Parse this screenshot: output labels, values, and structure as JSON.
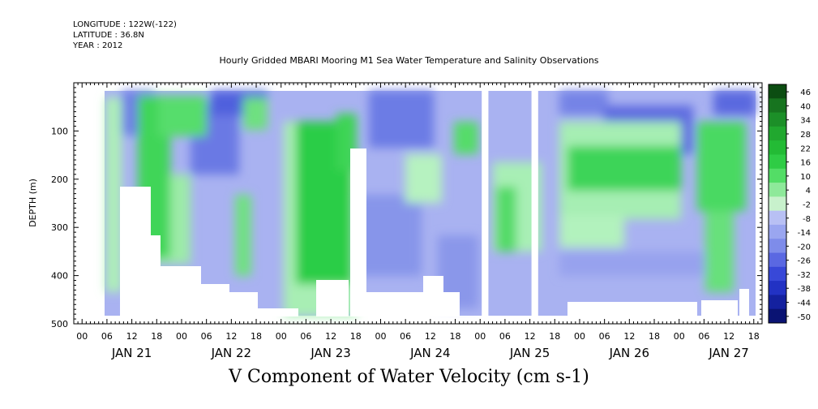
{
  "header": {
    "longitude": "LONGITUDE : 122W(-122)",
    "latitude": "LATITUDE : 36.8N",
    "year": "YEAR : 2012"
  },
  "chart_data": {
    "type": "heatmap",
    "title": "Hourly Gridded MBARI Mooring M1 Sea Water Temperature and Salinity Observations",
    "bottom_title": "V Component of Water Velocity (cm s-1)",
    "ylabel": "DEPTH (m)",
    "ylim": [
      0,
      500
    ],
    "y_inverted": true,
    "y_ticks": [
      100,
      200,
      300,
      400,
      500
    ],
    "x_axis": "time (hours)",
    "x_start": "JAN 20 22:00",
    "x_end": "JAN 27 20:00",
    "x_hour_tick_labels": [
      "00",
      "06",
      "12",
      "18",
      "00",
      "06",
      "12",
      "18",
      "00",
      "06",
      "12",
      "18",
      "00",
      "06",
      "12",
      "18",
      "00",
      "06",
      "12",
      "18",
      "00",
      "06",
      "12",
      "18",
      "00",
      "06",
      "12",
      "18"
    ],
    "day_labels": [
      "JAN 21",
      "JAN 22",
      "JAN 23",
      "JAN 24",
      "JAN 25",
      "JAN 26",
      "JAN 27"
    ],
    "colorbar": {
      "levels": [
        "46",
        "40",
        "34",
        "28",
        "22",
        "16",
        "10",
        "4",
        "-2",
        "-8",
        "-14",
        "-20",
        "-26",
        "-32",
        "-38",
        "-44",
        "-50"
      ],
      "range": [
        -50,
        50
      ],
      "colors_high_to_low": [
        "#0c4d12",
        "#17741f",
        "#1c8f28",
        "#21a82f",
        "#23bb35",
        "#2fcc45",
        "#53dd66",
        "#8ee99a",
        "#c8f1cc",
        "#b8c0f4",
        "#9aa6f0",
        "#7e8cea",
        "#5a68e2",
        "#3848d8",
        "#2232c4",
        "#14219f",
        "#0a1373"
      ]
    },
    "gaps_time": [
      [
        "JAN 25 00:00",
        "JAN 25 02:00"
      ],
      [
        "JAN 25 14:00",
        "JAN 25 16:00"
      ]
    ]
  }
}
